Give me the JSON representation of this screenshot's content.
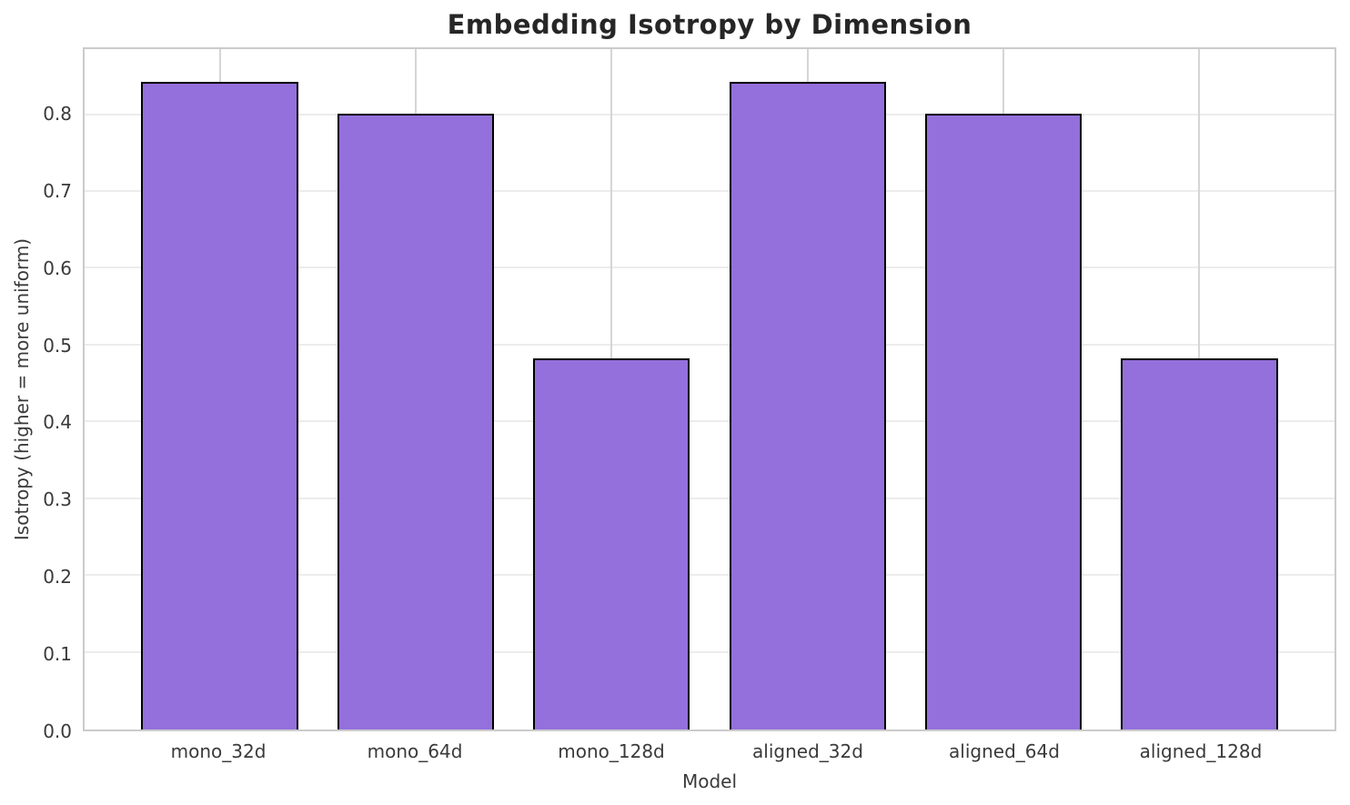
{
  "chart_data": {
    "type": "bar",
    "title": "Embedding Isotropy by Dimension",
    "xlabel": "Model",
    "ylabel": "Isotropy (higher = more uniform)",
    "categories": [
      "mono_32d",
      "mono_64d",
      "mono_128d",
      "aligned_32d",
      "aligned_64d",
      "aligned_128d"
    ],
    "values": [
      0.843,
      0.802,
      0.483,
      0.843,
      0.802,
      0.483
    ],
    "ylim": [
      0,
      0.886
    ],
    "yticks": [
      0.0,
      0.1,
      0.2,
      0.3,
      0.4,
      0.5,
      0.6,
      0.7,
      0.8
    ],
    "grid": true,
    "legend": "none",
    "bar_color": "#9370DB",
    "bar_edge_color": "#000000"
  }
}
